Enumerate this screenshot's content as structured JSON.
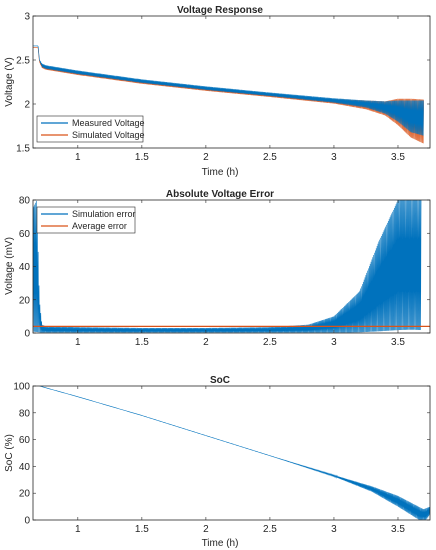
{
  "colors": {
    "measured": "#0072BD",
    "simulated": "#D95319",
    "axes": "#262626"
  },
  "chart_data": [
    {
      "type": "line",
      "title": "Voltage Response",
      "xlabel": "Time (h)",
      "ylabel": "Voltage (V)",
      "xlim": [
        0.65,
        3.75
      ],
      "ylim": [
        1.5,
        3.0
      ],
      "xticks": [
        "1",
        "1.5",
        "2",
        "2.5",
        "3",
        "3.5"
      ],
      "yticks": [
        "1.5",
        "2",
        "2.5",
        "3"
      ],
      "legend_position": "bottom-left",
      "grid": false,
      "series": [
        {
          "name": "Measured Voltage",
          "x": [
            0.65,
            0.69,
            0.7,
            0.72,
            0.75,
            1.0,
            1.5,
            2.0,
            2.5,
            3.0,
            3.25,
            3.4,
            3.5,
            3.6,
            3.7
          ],
          "y": [
            2.66,
            2.66,
            2.5,
            2.44,
            2.42,
            2.36,
            2.26,
            2.18,
            2.11,
            2.04,
            2.0,
            1.96,
            1.92,
            1.86,
            1.84
          ],
          "oscillation_amplitude": [
            0,
            0,
            0,
            0.02,
            0.02,
            0.02,
            0.02,
            0.02,
            0.02,
            0.025,
            0.04,
            0.07,
            0.12,
            0.18,
            0.2
          ]
        },
        {
          "name": "Simulated Voltage",
          "x": [
            0.65,
            0.69,
            0.7,
            0.72,
            0.75,
            1.0,
            1.5,
            2.0,
            2.5,
            3.0,
            3.25,
            3.4,
            3.5,
            3.6,
            3.7
          ],
          "y": [
            2.64,
            2.64,
            2.48,
            2.43,
            2.41,
            2.35,
            2.25,
            2.17,
            2.1,
            2.03,
            1.99,
            1.95,
            1.91,
            1.84,
            1.8
          ],
          "oscillation_amplitude": [
            0,
            0,
            0,
            0.02,
            0.02,
            0.02,
            0.02,
            0.02,
            0.02,
            0.025,
            0.05,
            0.08,
            0.15,
            0.22,
            0.25
          ]
        }
      ]
    },
    {
      "type": "line",
      "title": "Absolute Voltage Error",
      "xlabel": "",
      "ylabel": "Voltage (mV)",
      "xlim": [
        0.65,
        3.75
      ],
      "ylim": [
        0,
        80
      ],
      "xticks": [
        "1",
        "1.5",
        "2",
        "2.5",
        "3",
        "3.5"
      ],
      "yticks": [
        "0",
        "20",
        "40",
        "60",
        "80"
      ],
      "legend_position": "top-left",
      "grid": false,
      "series": [
        {
          "name": "Simulation error",
          "x": [
            0.65,
            0.68,
            0.7,
            0.72,
            0.75,
            1.0,
            1.5,
            2.0,
            2.5,
            2.8,
            3.0,
            3.2,
            3.35,
            3.5,
            3.6,
            3.68
          ],
          "y": [
            16,
            12,
            8,
            4,
            2,
            1.5,
            1.2,
            1.2,
            1.3,
            1.5,
            3,
            8,
            20,
            35,
            40,
            36
          ],
          "peak": [
            75,
            80,
            20,
            5,
            4,
            3.5,
            3,
            3,
            3.5,
            5,
            10,
            25,
            55,
            80,
            80,
            80
          ]
        },
        {
          "name": "Average error",
          "x": [
            0.65,
            3.75
          ],
          "y": [
            4,
            4
          ]
        }
      ]
    },
    {
      "type": "line",
      "title": "SoC",
      "xlabel": "Time (h)",
      "ylabel": "SoC (%)",
      "xlim": [
        0.65,
        3.75
      ],
      "ylim": [
        0,
        100
      ],
      "xticks": [
        "1",
        "1.5",
        "2",
        "2.5",
        "3",
        "3.5"
      ],
      "yticks": [
        "0",
        "20",
        "40",
        "60",
        "80",
        "100"
      ],
      "grid": false,
      "series": [
        {
          "x": [
            0.7,
            1.0,
            1.5,
            2.0,
            2.5,
            3.0,
            3.3,
            3.5,
            3.7,
            3.75
          ],
          "y": [
            100,
            92,
            78,
            63,
            48,
            33,
            23,
            14,
            3,
            7
          ],
          "oscillation_amplitude": [
            0,
            0,
            0,
            0,
            0,
            0.5,
            2,
            4,
            5,
            3
          ]
        }
      ]
    }
  ]
}
